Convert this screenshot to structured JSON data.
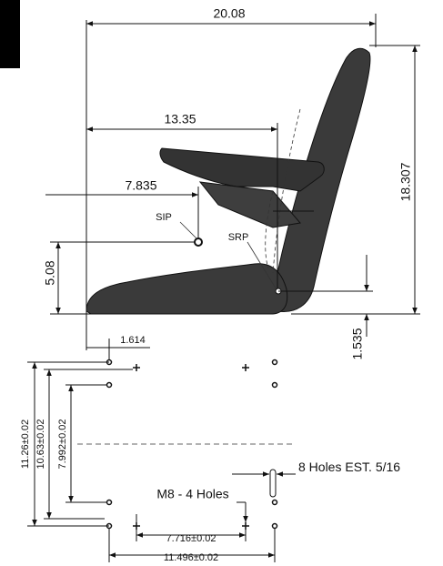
{
  "dimensions": {
    "overall_width": "20.08",
    "sip_to_front": "13.35",
    "sip_offset": "7.835",
    "sip_height": "5.08",
    "overall_height": "18.307",
    "front_to_hole": "1.614",
    "srp_height": "1.535",
    "outer_hole_span": "11.26±0.02",
    "mid_hole_span": "10.63±0.02",
    "inner_hole_span": "7.992±0.02",
    "cross_span": "7.716±0.02",
    "hole_width_span": "11.496±0.02"
  },
  "labels": {
    "sip": "SIP",
    "srp": "SRP",
    "slot_holes": "8 Holes",
    "slot_size": "EST. 5/16",
    "m8_holes": "M8 - 4 Holes"
  }
}
